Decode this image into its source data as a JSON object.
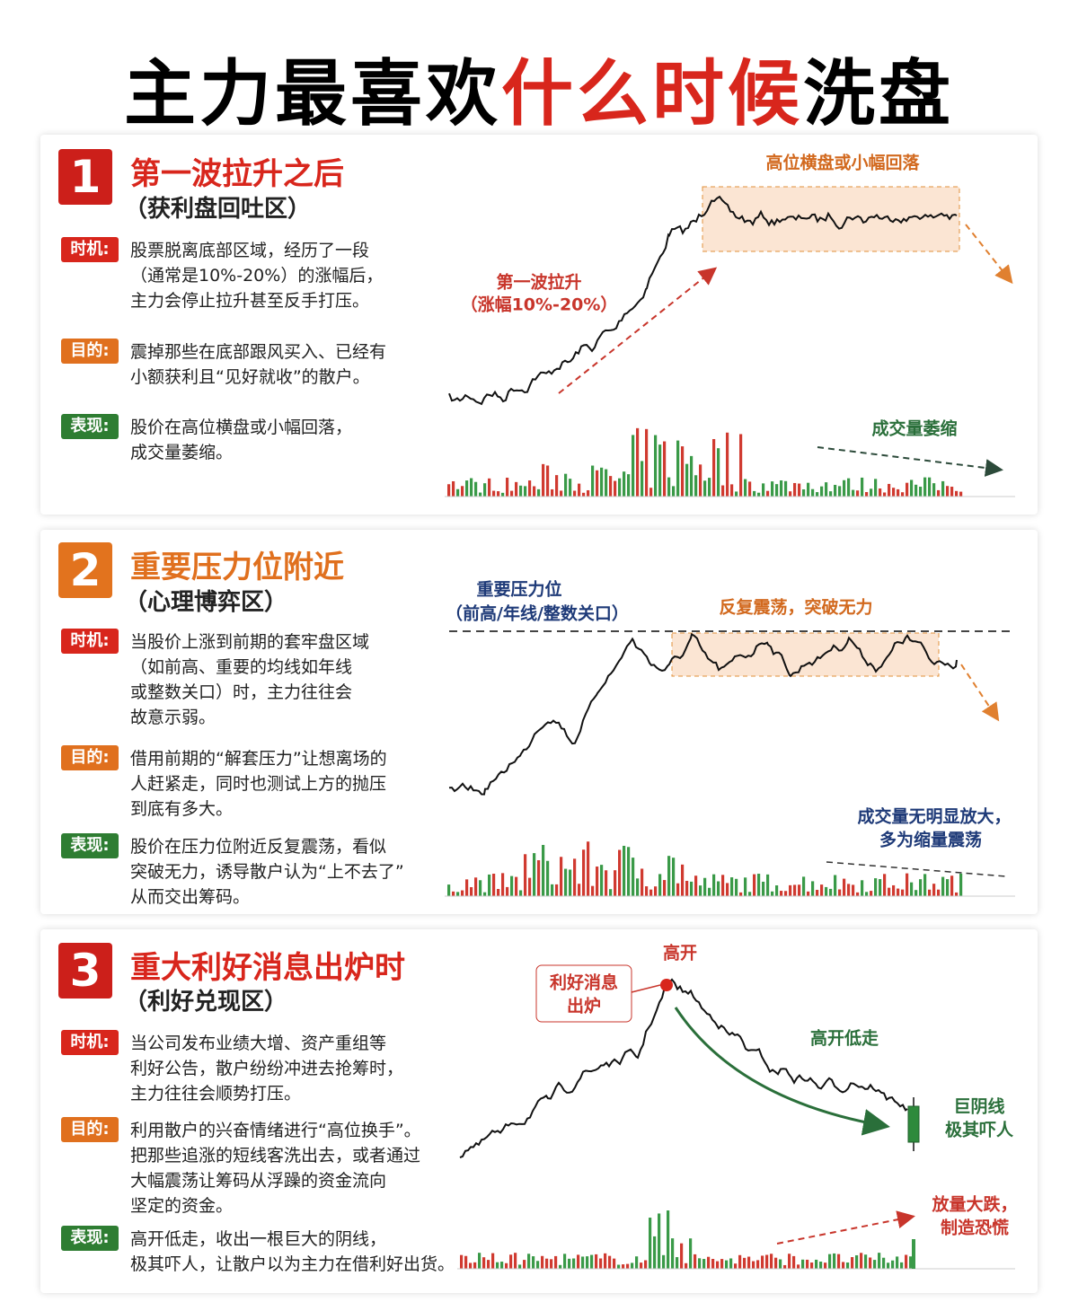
{
  "header": {
    "title_part1": "主力最喜欢",
    "title_part2": "什么时候",
    "title_part3": "洗盘"
  },
  "sections": [
    {
      "number": "1",
      "title": "第一波拉升之后",
      "subtitle": "（获利盘回吐区）",
      "items": [
        {
          "tag": "时机:",
          "lines": [
            "股票脱离底部区域，经历了一段",
            "（通常是10%-20%）的涨幅后，",
            "主力会停止拉升甚至反手打压。"
          ]
        },
        {
          "tag": "目的:",
          "lines": [
            "震掉那些在底部跟风买入、已经有",
            "小额获利且“见好就收”的散户。"
          ]
        },
        {
          "tag": "表现:",
          "lines": [
            "股价在高位横盘或小幅回落，",
            "成交量萎缩。"
          ]
        }
      ],
      "annotations": [
        "高位横盘或小幅回落",
        "第一波拉升",
        "（涨幅10%-20%）",
        "成交量萎缩"
      ]
    },
    {
      "number": "2",
      "title": "重要压力位附近",
      "subtitle": "（心理博弈区）",
      "items": [
        {
          "tag": "时机:",
          "lines": [
            "当股价上涨到前期的套牢盘区域",
            "（如前高、重要的均线如年线",
            "或整数关口）时，主力往往会",
            "故意示弱。"
          ]
        },
        {
          "tag": "目的:",
          "lines": [
            "借用前期的“解套压力”让想离场的",
            "人赶紧走，同时也测试上方的抛压",
            "到底有多大。"
          ]
        },
        {
          "tag": "表现:",
          "lines": [
            "股价在压力位附近反复震荡，看似",
            "突破无力，诱导散户认为“上不去了”",
            "从而交出筹码。"
          ]
        }
      ],
      "annotations": [
        "重要压力位",
        "（前高/年线/整数关口）",
        "反复震荡，突破无力",
        "成交量无明显放大，",
        "多为缩量震荡"
      ]
    },
    {
      "number": "3",
      "title": "重大利好消息出炉时",
      "subtitle": "（利好兑现区）",
      "items": [
        {
          "tag": "时机:",
          "lines": [
            "当公司发布业绩大增、资产重组等",
            "利好公告，散户纷纷冲进去抢筹时，",
            "主力往往会顺势打压。"
          ]
        },
        {
          "tag": "目的:",
          "lines": [
            "利用散户的兴奋情绪进行“高位换手”。",
            "把那些追涨的短线客洗出去，或者通过",
            "大幅震荡让筹码从浮躁的资金流向",
            "坚定的资金。"
          ]
        },
        {
          "tag": "表现:",
          "lines": [
            "高开低走，收出一根巨大的阴线，",
            "极其吓人，让散户以为主力在借利好出货。"
          ]
        }
      ],
      "annotations": [
        "高开",
        "利好消息",
        "出炉",
        "高开低走",
        "巨阴线",
        "极其吓人",
        "放量大跌，",
        "制造恐慌"
      ]
    }
  ]
}
